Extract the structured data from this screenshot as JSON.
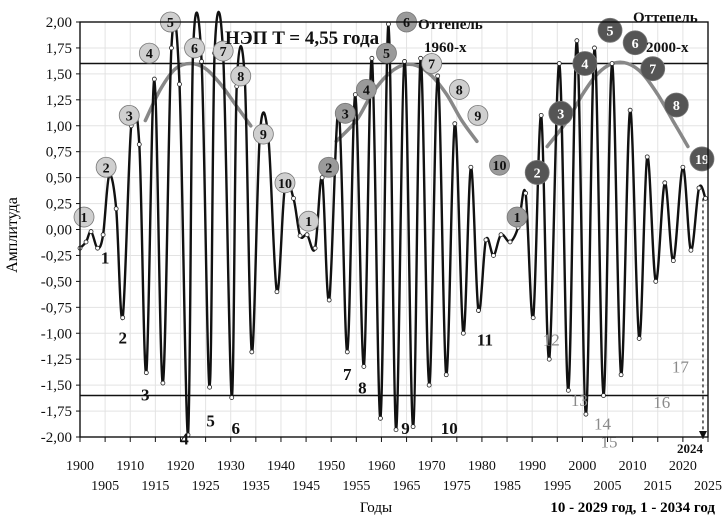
{
  "chart_data": {
    "type": "line",
    "title": "НЭП  T = 4,55 года",
    "xlabel": "Годы",
    "ylabel": "Амплитуда",
    "footnote": "10 - 2029 год, 1 - 2034 год",
    "xlim": [
      1900,
      2025
    ],
    "ylim": [
      -2.0,
      2.0
    ],
    "x_ticks_top": [
      1900,
      1910,
      1920,
      1930,
      1940,
      1950,
      1960,
      1970,
      1980,
      1990,
      2000,
      2010,
      2020
    ],
    "x_ticks_bottom": [
      1905,
      1915,
      1925,
      1935,
      1945,
      1955,
      1965,
      1975,
      1985,
      1995,
      2005,
      2015,
      2025
    ],
    "y_ticks": [
      "2,00",
      "1,75",
      "1,50",
      "1,25",
      "1,00",
      "0,75",
      "0,50",
      "0,25",
      "0,00",
      "-0,25",
      "-0,50",
      "-0,75",
      "-1,00",
      "-1,25",
      "-1,50",
      "-1,75",
      "-2,00"
    ],
    "y_tick_values": [
      2.0,
      1.75,
      1.5,
      1.25,
      1.0,
      0.75,
      0.5,
      0.25,
      0,
      -0.25,
      -0.5,
      -0.75,
      -1.0,
      -1.25,
      -1.5,
      -1.75,
      -2.0
    ],
    "threshold_lines": [
      1.6,
      -1.6
    ],
    "series": [
      {
        "color": "#111111",
        "x": [
          1900,
          1901.2,
          1902.2,
          1903.5,
          1904.6,
          1905.8,
          1907.2,
          1908.5,
          1910.2,
          1911.8,
          1913.2,
          1914.8,
          1916.5,
          1918.2,
          1919.8,
          1921.5,
          1922.5,
          1924.2,
          1925.8,
          1926.8,
          1928.5,
          1930.2,
          1931.2,
          1932.8,
          1934.2,
          1935.8,
          1937.5,
          1939.2,
          1940.8,
          1942.5,
          1943.8,
          1945.2,
          1946.8,
          1948.2,
          1949.6,
          1951.5,
          1953.2,
          1954.8,
          1956.5,
          1958.1,
          1959.8,
          1961.4,
          1962.9,
          1964.6,
          1966.3,
          1967.8,
          1969.5,
          1971.2,
          1972.9,
          1974.6,
          1976.3,
          1977.8,
          1979.3,
          1980.8,
          1982.3,
          1983.8,
          1985.6,
          1987.2,
          1988.7,
          1990.2,
          1991.8,
          1993.4,
          1995.4,
          1997.2,
          1998.9,
          2000.7,
          2002.4,
          2004.2,
          2005.9,
          2007.7,
          2009.5,
          2011.3,
          2012.9,
          2014.6,
          2016.4,
          2018.1,
          2020.0,
          2021.6,
          2023.2,
          2024.5
        ],
        "y": [
          -0.18,
          -0.12,
          -0.02,
          -0.18,
          -0.05,
          0.52,
          0.2,
          -0.85,
          1.0,
          0.82,
          -1.38,
          1.45,
          -1.48,
          1.75,
          1.4,
          -1.98,
          1.7,
          1.62,
          -1.52,
          1.7,
          1.68,
          -1.62,
          1.38,
          1.45,
          -1.18,
          0.92,
          0.88,
          -0.6,
          0.42,
          0.3,
          -0.06,
          -0.05,
          -0.18,
          0.5,
          -0.68,
          1.15,
          -1.18,
          1.3,
          -1.32,
          1.65,
          -1.82,
          1.98,
          -1.93,
          1.62,
          -1.9,
          1.65,
          -1.5,
          1.48,
          -1.4,
          1.02,
          -1.0,
          0.6,
          -0.78,
          -0.1,
          -0.25,
          -0.05,
          -0.12,
          0.02,
          0.35,
          -0.85,
          1.1,
          -1.25,
          1.6,
          -1.55,
          1.82,
          -1.78,
          1.75,
          -1.6,
          1.6,
          -1.4,
          1.15,
          -1.05,
          0.7,
          -0.5,
          0.45,
          -0.3,
          0.6,
          -0.2,
          0.4,
          0.3
        ]
      },
      {
        "color": "#888888",
        "x": [
          1951,
          1955,
          1958,
          1961,
          1964,
          1967,
          1970,
          1973,
          1976,
          1979
        ],
        "y": [
          0.85,
          1.05,
          1.3,
          1.48,
          1.58,
          1.58,
          1.48,
          1.3,
          1.05,
          0.85
        ]
      },
      {
        "color": "#888888",
        "x": [
          1993,
          1997,
          2000,
          2003,
          2006,
          2009,
          2012,
          2015,
          2018,
          2021
        ],
        "y": [
          0.8,
          1.05,
          1.3,
          1.5,
          1.6,
          1.6,
          1.5,
          1.3,
          1.05,
          0.8
        ]
      },
      {
        "color": "#888888",
        "x": [
          1913,
          1916,
          1919,
          1922,
          1925,
          1928,
          1931,
          1934
        ],
        "y": [
          1.05,
          1.35,
          1.55,
          1.6,
          1.55,
          1.4,
          1.2,
          1.0
        ]
      }
    ],
    "markers": [
      {
        "n": "1",
        "x": 1900.8,
        "y": 0.12,
        "tone": "light"
      },
      {
        "n": "2",
        "x": 1905.2,
        "y": 0.6,
        "tone": "light"
      },
      {
        "n": "3",
        "x": 1909.8,
        "y": 1.1,
        "tone": "light"
      },
      {
        "n": "4",
        "x": 1913.8,
        "y": 1.7,
        "tone": "light"
      },
      {
        "n": "5",
        "x": 1918.0,
        "y": 2.0,
        "tone": "light"
      },
      {
        "n": "6",
        "x": 1922.8,
        "y": 1.75,
        "tone": "light"
      },
      {
        "n": "7",
        "x": 1928.5,
        "y": 1.72,
        "tone": "light"
      },
      {
        "n": "8",
        "x": 1932.0,
        "y": 1.48,
        "tone": "light"
      },
      {
        "n": "9",
        "x": 1936.5,
        "y": 0.92,
        "tone": "light"
      },
      {
        "n": "10",
        "x": 1940.8,
        "y": 0.45,
        "tone": "light"
      },
      {
        "n": "1",
        "x": 1945.5,
        "y": 0.08,
        "tone": "light"
      },
      {
        "n": "2",
        "x": 1949.5,
        "y": 0.6,
        "tone": "mid"
      },
      {
        "n": "3",
        "x": 1952.8,
        "y": 1.12,
        "tone": "mid"
      },
      {
        "n": "4",
        "x": 1957.0,
        "y": 1.35,
        "tone": "mid"
      },
      {
        "n": "5",
        "x": 1961.0,
        "y": 1.7,
        "tone": "mid"
      },
      {
        "n": "6",
        "x": 1965.0,
        "y": 2.0,
        "tone": "mid"
      },
      {
        "n": "7",
        "x": 1970.0,
        "y": 1.6,
        "tone": "light"
      },
      {
        "n": "8",
        "x": 1975.5,
        "y": 1.35,
        "tone": "light"
      },
      {
        "n": "9",
        "x": 1979.2,
        "y": 1.1,
        "tone": "light"
      },
      {
        "n": "10",
        "x": 1983.5,
        "y": 0.62,
        "tone": "mid"
      },
      {
        "n": "1",
        "x": 1987.0,
        "y": 0.12,
        "tone": "mid"
      },
      {
        "n": "2",
        "x": 1991.0,
        "y": 0.55,
        "tone": "dark"
      },
      {
        "n": "3",
        "x": 1995.7,
        "y": 1.12,
        "tone": "dark"
      },
      {
        "n": "4",
        "x": 2000.5,
        "y": 1.6,
        "tone": "dark"
      },
      {
        "n": "5",
        "x": 2005.5,
        "y": 1.92,
        "tone": "dark"
      },
      {
        "n": "6",
        "x": 2010.5,
        "y": 1.8,
        "tone": "dark"
      },
      {
        "n": "7",
        "x": 2014.0,
        "y": 1.55,
        "tone": "dark"
      },
      {
        "n": "8",
        "x": 2018.7,
        "y": 1.2,
        "tone": "dark"
      },
      {
        "n": "19",
        "x": 2023.8,
        "y": 0.68,
        "tone": "dark"
      }
    ],
    "trough_labels": [
      {
        "n": "1",
        "x": 1905.0,
        "y": -0.33,
        "gray": false
      },
      {
        "n": "2",
        "x": 1908.5,
        "y": -1.1,
        "gray": false
      },
      {
        "n": "3",
        "x": 1913.0,
        "y": -1.65,
        "gray": false
      },
      {
        "n": "4",
        "x": 1920.8,
        "y": -2.07,
        "gray": false
      },
      {
        "n": "5",
        "x": 1926.0,
        "y": -1.9,
        "gray": false
      },
      {
        "n": "6",
        "x": 1931.0,
        "y": -1.97,
        "gray": false
      },
      {
        "n": "7",
        "x": 1953.2,
        "y": -1.45,
        "gray": false
      },
      {
        "n": "8",
        "x": 1956.2,
        "y": -1.58,
        "gray": false
      },
      {
        "n": "9",
        "x": 1964.8,
        "y": -1.97,
        "gray": false
      },
      {
        "n": "10",
        "x": 1973.5,
        "y": -1.97,
        "gray": false
      },
      {
        "n": "11",
        "x": 1980.6,
        "y": -1.12,
        "gray": false
      },
      {
        "n": "12",
        "x": 1993.8,
        "y": -1.12,
        "gray": true
      },
      {
        "n": "13",
        "x": 1999.4,
        "y": -1.7,
        "gray": true
      },
      {
        "n": "14",
        "x": 2004.0,
        "y": -1.93,
        "gray": true
      },
      {
        "n": "15",
        "x": 2005.3,
        "y": -2.1,
        "gray": true
      },
      {
        "n": "16",
        "x": 2015.8,
        "y": -1.72,
        "gray": true
      },
      {
        "n": "17",
        "x": 2019.5,
        "y": -1.38,
        "gray": true
      }
    ],
    "annotations": {
      "thaw_1960_line1": "Оттепель",
      "thaw_1960_line2": "1960-х",
      "thaw_2000_line1": "Оттепель",
      "thaw_2000_line2": "2000-х",
      "arrow_year": "2024"
    }
  }
}
